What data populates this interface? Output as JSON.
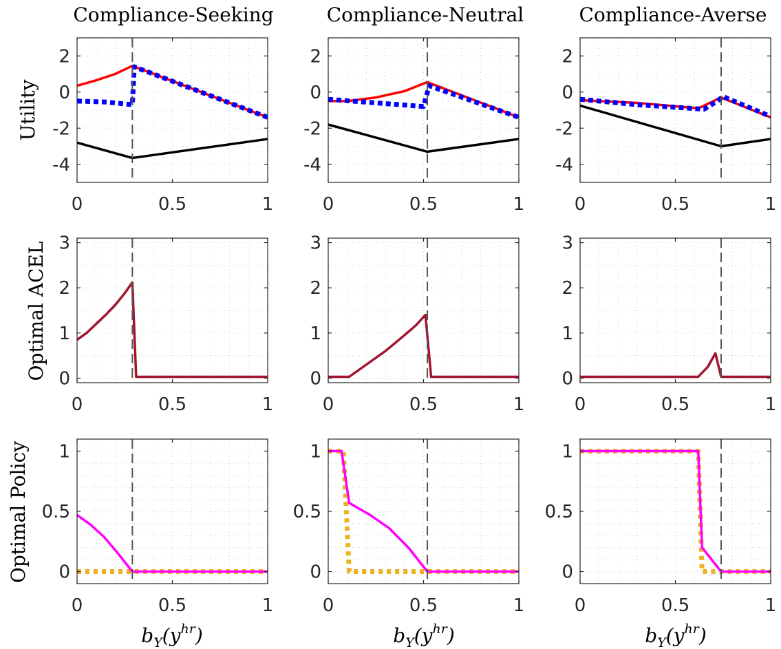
{
  "colors": {
    "red": "#ff0000",
    "blue": "#0000ff",
    "black": "#000000",
    "acel": "#a2142f",
    "magenta": "#ff00ff",
    "orange": "#edb120",
    "threshold": "#555555"
  },
  "figure": {
    "columns": [
      "Compliance-Seeking",
      "Compliance-Neutral",
      "Compliance-Averse"
    ],
    "row_labels": [
      "Utility",
      "Optimal ACEL",
      "Optimal Policy"
    ],
    "xlabel": "b_Y(y^hr)",
    "xlabel_parts": {
      "b": "b",
      "sub": "Y",
      "open": "(y",
      "sup": "hr",
      "close": ")"
    },
    "x_ticks": [
      "0",
      "0.5",
      "1"
    ]
  },
  "chart_data": [
    {
      "type": "line",
      "row": "Utility",
      "column": "Compliance-Seeking",
      "ylabel": "Utility",
      "xlim": [
        0,
        1
      ],
      "ylim": [
        -5,
        3
      ],
      "y_ticks": [
        "2",
        "0",
        "-2",
        "-4"
      ],
      "grid": "on",
      "threshold_x": 0.29,
      "series": [
        {
          "style": "red-solid",
          "points": [
            [
              0,
              0.35
            ],
            [
              0.1,
              0.65
            ],
            [
              0.2,
              1.0
            ],
            [
              0.29,
              1.45
            ],
            [
              1,
              -1.4
            ]
          ]
        },
        {
          "style": "blue-dotted",
          "points": [
            [
              0,
              -0.5
            ],
            [
              0.15,
              -0.55
            ],
            [
              0.29,
              -0.7
            ],
            [
              0.3,
              1.4
            ],
            [
              1,
              -1.4
            ]
          ]
        },
        {
          "style": "black-solid",
          "points": [
            [
              0,
              -2.8
            ],
            [
              0.29,
              -3.65
            ],
            [
              1,
              -2.6
            ]
          ]
        }
      ]
    },
    {
      "type": "line",
      "row": "Utility",
      "column": "Compliance-Neutral",
      "ylabel": "",
      "xlim": [
        0,
        1
      ],
      "ylim": [
        -5,
        3
      ],
      "y_ticks": [
        "2",
        "0",
        "-2",
        "-4"
      ],
      "grid": "on",
      "threshold_x": 0.52,
      "series": [
        {
          "style": "red-solid",
          "points": [
            [
              0,
              -0.5
            ],
            [
              0.1,
              -0.5
            ],
            [
              0.25,
              -0.3
            ],
            [
              0.4,
              0.05
            ],
            [
              0.52,
              0.55
            ],
            [
              1,
              -1.4
            ]
          ]
        },
        {
          "style": "blue-dotted",
          "points": [
            [
              0,
              -0.4
            ],
            [
              0.25,
              -0.6
            ],
            [
              0.5,
              -0.8
            ],
            [
              0.53,
              0.35
            ],
            [
              1,
              -1.4
            ]
          ]
        },
        {
          "style": "black-solid",
          "points": [
            [
              0,
              -1.8
            ],
            [
              0.52,
              -3.3
            ],
            [
              1,
              -2.6
            ]
          ]
        }
      ]
    },
    {
      "type": "line",
      "row": "Utility",
      "column": "Compliance-Averse",
      "ylabel": "",
      "xlim": [
        0,
        1
      ],
      "ylim": [
        -5,
        3
      ],
      "y_ticks": [
        "2",
        "0",
        "-2",
        "-4"
      ],
      "grid": "on",
      "threshold_x": 0.74,
      "series": [
        {
          "style": "red-solid",
          "points": [
            [
              0,
              -0.45
            ],
            [
              0.3,
              -0.6
            ],
            [
              0.62,
              -0.9
            ],
            [
              0.74,
              -0.3
            ],
            [
              1,
              -1.4
            ]
          ]
        },
        {
          "style": "blue-dotted",
          "points": [
            [
              0,
              -0.4
            ],
            [
              0.3,
              -0.7
            ],
            [
              0.65,
              -0.95
            ],
            [
              0.72,
              -0.5
            ],
            [
              0.75,
              -0.25
            ],
            [
              1,
              -1.35
            ]
          ]
        },
        {
          "style": "black-solid",
          "points": [
            [
              0,
              -0.75
            ],
            [
              0.74,
              -3.0
            ],
            [
              1,
              -2.6
            ]
          ]
        }
      ]
    },
    {
      "type": "line",
      "row": "Optimal ACEL",
      "column": "Compliance-Seeking",
      "ylabel": "Optimal ACEL",
      "xlim": [
        0,
        1
      ],
      "ylim": [
        -0.1,
        3.1
      ],
      "y_ticks": [
        "3",
        "2",
        "1",
        "0"
      ],
      "grid": "on",
      "threshold_x": 0.29,
      "series": [
        {
          "style": "acel-solid",
          "points": [
            [
              0,
              0.85
            ],
            [
              0.05,
              1.0
            ],
            [
              0.1,
              1.2
            ],
            [
              0.15,
              1.4
            ],
            [
              0.2,
              1.62
            ],
            [
              0.25,
              1.88
            ],
            [
              0.29,
              2.12
            ],
            [
              0.31,
              0.03
            ],
            [
              1,
              0.03
            ]
          ]
        }
      ]
    },
    {
      "type": "line",
      "row": "Optimal ACEL",
      "column": "Compliance-Neutral",
      "ylabel": "",
      "xlim": [
        0,
        1
      ],
      "ylim": [
        -0.1,
        3.1
      ],
      "y_ticks": [
        "3",
        "2",
        "1",
        "0"
      ],
      "grid": "on",
      "threshold_x": 0.52,
      "series": [
        {
          "style": "acel-solid",
          "points": [
            [
              0,
              0.03
            ],
            [
              0.11,
              0.03
            ],
            [
              0.2,
              0.3
            ],
            [
              0.3,
              0.6
            ],
            [
              0.4,
              0.95
            ],
            [
              0.46,
              1.17
            ],
            [
              0.51,
              1.4
            ],
            [
              0.54,
              0.03
            ],
            [
              1,
              0.03
            ]
          ]
        }
      ]
    },
    {
      "type": "line",
      "row": "Optimal ACEL",
      "column": "Compliance-Averse",
      "ylabel": "",
      "xlim": [
        0,
        1
      ],
      "ylim": [
        -0.1,
        3.1
      ],
      "y_ticks": [
        "3",
        "2",
        "1",
        "0"
      ],
      "grid": "on",
      "threshold_x": 0.74,
      "series": [
        {
          "style": "acel-solid",
          "points": [
            [
              0,
              0.03
            ],
            [
              0.62,
              0.03
            ],
            [
              0.67,
              0.25
            ],
            [
              0.71,
              0.55
            ],
            [
              0.74,
              0.03
            ],
            [
              1,
              0.03
            ]
          ]
        }
      ]
    },
    {
      "type": "line",
      "row": "Optimal Policy",
      "column": "Compliance-Seeking",
      "ylabel": "Optimal Policy",
      "xlim": [
        0,
        1
      ],
      "ylim": [
        -0.1,
        1.1
      ],
      "y_ticks": [
        "1",
        "0.5",
        "0"
      ],
      "grid": "on",
      "threshold_x": 0.29,
      "series": [
        {
          "style": "orange-dotted",
          "points": [
            [
              0,
              0
            ],
            [
              1,
              0
            ]
          ]
        },
        {
          "style": "magenta-solid",
          "points": [
            [
              0,
              0.47
            ],
            [
              0.07,
              0.39
            ],
            [
              0.14,
              0.29
            ],
            [
              0.21,
              0.16
            ],
            [
              0.29,
              0
            ],
            [
              1,
              0
            ]
          ]
        }
      ]
    },
    {
      "type": "line",
      "row": "Optimal Policy",
      "column": "Compliance-Neutral",
      "ylabel": "",
      "xlim": [
        0,
        1
      ],
      "ylim": [
        -0.1,
        1.1
      ],
      "y_ticks": [
        "1",
        "0.5",
        "0"
      ],
      "grid": "on",
      "threshold_x": 0.52,
      "series": [
        {
          "style": "orange-dotted",
          "points": [
            [
              0,
              1
            ],
            [
              0.08,
              1
            ],
            [
              0.11,
              0
            ],
            [
              1,
              0
            ]
          ]
        },
        {
          "style": "magenta-solid",
          "points": [
            [
              0,
              1
            ],
            [
              0.07,
              1
            ],
            [
              0.11,
              0.57
            ],
            [
              0.22,
              0.47
            ],
            [
              0.32,
              0.36
            ],
            [
              0.42,
              0.2
            ],
            [
              0.52,
              0
            ],
            [
              1,
              0
            ]
          ]
        }
      ]
    },
    {
      "type": "line",
      "row": "Optimal Policy",
      "column": "Compliance-Averse",
      "ylabel": "",
      "xlim": [
        0,
        1
      ],
      "ylim": [
        -0.1,
        1.1
      ],
      "y_ticks": [
        "1",
        "0.5",
        "0"
      ],
      "grid": "on",
      "threshold_x": 0.74,
      "series": [
        {
          "style": "orange-dotted",
          "points": [
            [
              0,
              1
            ],
            [
              0.62,
              1
            ],
            [
              0.64,
              0
            ],
            [
              1,
              0
            ]
          ]
        },
        {
          "style": "magenta-solid",
          "points": [
            [
              0,
              1
            ],
            [
              0.62,
              1
            ],
            [
              0.64,
              0.2
            ],
            [
              0.74,
              0
            ],
            [
              1,
              0
            ]
          ]
        }
      ]
    }
  ]
}
